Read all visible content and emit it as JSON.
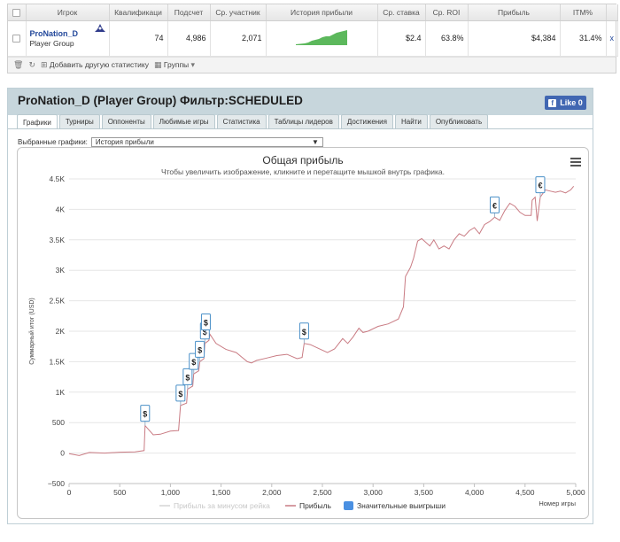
{
  "stats_table": {
    "columns": [
      "Игрок",
      "Квалификаци",
      "Подсчет",
      "Ср. участник",
      "История прибыли",
      "Ср. ставка",
      "Ср. ROI",
      "Прибыль",
      "ITM%"
    ],
    "row": {
      "player_name": "ProNation_D",
      "player_group": "Player Group",
      "qualification": "74",
      "count": "4,986",
      "avg_participants": "2,071",
      "avg_stake": "$2.4",
      "avg_roi": "63.8%",
      "profit": "$4,384",
      "itm": "31.4%",
      "remove_label": "x"
    },
    "toolbar": {
      "add_stat_label": "Добавить другую статистику",
      "groups_label": "Группы"
    }
  },
  "panel": {
    "title": "ProNation_D (Player Group) Фильтр:SCHEDULED",
    "like_label": "Like 0",
    "tabs": [
      "Графики",
      "Турниры",
      "Оппоненты",
      "Любимые игры",
      "Статистика",
      "Таблицы лидеров",
      "Достижения",
      "Найти",
      "Опубликовать"
    ],
    "graph_select_label": "Выбранные графики:",
    "graph_select_value": "История прибыли"
  },
  "chart_data": {
    "type": "line",
    "title": "Общая прибыль",
    "subtitle": "Чтобы увеличить изображение, кликните и перетащите мышкой внутрь графика.",
    "xlabel": "Номер игры",
    "ylabel": "Суммарный итог (USD)",
    "xlim": [
      0,
      5000
    ],
    "ylim": [
      -500,
      4500
    ],
    "x_ticks": [
      0,
      500,
      1000,
      1500,
      2000,
      2500,
      3000,
      3500,
      4000,
      4500,
      5000
    ],
    "x_tick_labels": [
      "0",
      "500",
      "1,000",
      "1,500",
      "2,000",
      "2,500",
      "3,000",
      "3,500",
      "4,000",
      "4,500",
      "5,000"
    ],
    "y_ticks": [
      -500,
      0,
      500,
      1000,
      1500,
      2000,
      2500,
      3000,
      3500,
      4000,
      4500
    ],
    "y_tick_labels": [
      "−500",
      "0",
      "500",
      "1K",
      "1.5K",
      "2K",
      "2.5K",
      "3K",
      "3.5K",
      "4K",
      "4.5K"
    ],
    "grid": true,
    "legend": [
      "Прибыль за минусом рейка",
      "Прибыль",
      "Значительные выигрыши"
    ],
    "series": [
      {
        "name": "Прибыль",
        "color": "#c97b83",
        "points": [
          [
            0,
            -10
          ],
          [
            100,
            -40
          ],
          [
            200,
            10
          ],
          [
            350,
            0
          ],
          [
            500,
            15
          ],
          [
            650,
            20
          ],
          [
            740,
            40
          ],
          [
            750,
            450
          ],
          [
            830,
            300
          ],
          [
            900,
            310
          ],
          [
            1000,
            360
          ],
          [
            1080,
            370
          ],
          [
            1100,
            780
          ],
          [
            1160,
            820
          ],
          [
            1170,
            1050
          ],
          [
            1220,
            1100
          ],
          [
            1230,
            1300
          ],
          [
            1280,
            1350
          ],
          [
            1290,
            1500
          ],
          [
            1330,
            1550
          ],
          [
            1340,
            1800
          ],
          [
            1380,
            1850
          ],
          [
            1390,
            1950
          ],
          [
            1450,
            1800
          ],
          [
            1550,
            1700
          ],
          [
            1650,
            1650
          ],
          [
            1700,
            1580
          ],
          [
            1760,
            1500
          ],
          [
            1800,
            1480
          ],
          [
            1850,
            1520
          ],
          [
            1950,
            1560
          ],
          [
            2050,
            1600
          ],
          [
            2150,
            1620
          ],
          [
            2250,
            1550
          ],
          [
            2300,
            1570
          ],
          [
            2320,
            1800
          ],
          [
            2380,
            1780
          ],
          [
            2460,
            1720
          ],
          [
            2550,
            1650
          ],
          [
            2620,
            1710
          ],
          [
            2700,
            1880
          ],
          [
            2750,
            1800
          ],
          [
            2800,
            1900
          ],
          [
            2860,
            2050
          ],
          [
            2900,
            1980
          ],
          [
            2950,
            2000
          ],
          [
            3050,
            2080
          ],
          [
            3150,
            2120
          ],
          [
            3250,
            2200
          ],
          [
            3300,
            2400
          ],
          [
            3320,
            2900
          ],
          [
            3370,
            3050
          ],
          [
            3400,
            3200
          ],
          [
            3440,
            3480
          ],
          [
            3480,
            3520
          ],
          [
            3520,
            3460
          ],
          [
            3560,
            3400
          ],
          [
            3600,
            3500
          ],
          [
            3650,
            3350
          ],
          [
            3700,
            3400
          ],
          [
            3750,
            3350
          ],
          [
            3800,
            3500
          ],
          [
            3850,
            3600
          ],
          [
            3900,
            3560
          ],
          [
            3950,
            3650
          ],
          [
            4000,
            3700
          ],
          [
            4050,
            3600
          ],
          [
            4100,
            3750
          ],
          [
            4150,
            3800
          ],
          [
            4200,
            3870
          ],
          [
            4250,
            3820
          ],
          [
            4300,
            3980
          ],
          [
            4350,
            4100
          ],
          [
            4400,
            4050
          ],
          [
            4450,
            3950
          ],
          [
            4500,
            3900
          ],
          [
            4560,
            3900
          ],
          [
            4570,
            4150
          ],
          [
            4600,
            4200
          ],
          [
            4620,
            3810
          ],
          [
            4650,
            4200
          ],
          [
            4700,
            4320
          ],
          [
            4750,
            4300
          ],
          [
            4800,
            4280
          ],
          [
            4850,
            4300
          ],
          [
            4900,
            4270
          ],
          [
            4950,
            4320
          ],
          [
            4980,
            4380
          ]
        ]
      }
    ],
    "big_wins": [
      {
        "x": 750,
        "y": 450,
        "label": "$"
      },
      {
        "x": 1100,
        "y": 780,
        "label": "$"
      },
      {
        "x": 1170,
        "y": 1050,
        "label": "$"
      },
      {
        "x": 1230,
        "y": 1300,
        "label": "$"
      },
      {
        "x": 1290,
        "y": 1500,
        "label": "$"
      },
      {
        "x": 1340,
        "y": 1800,
        "label": "$"
      },
      {
        "x": 1350,
        "y": 1950,
        "label": "$"
      },
      {
        "x": 2320,
        "y": 1800,
        "label": "$"
      },
      {
        "x": 4200,
        "y": 3870,
        "label": "€"
      },
      {
        "x": 4650,
        "y": 4200,
        "label": "€"
      }
    ]
  }
}
